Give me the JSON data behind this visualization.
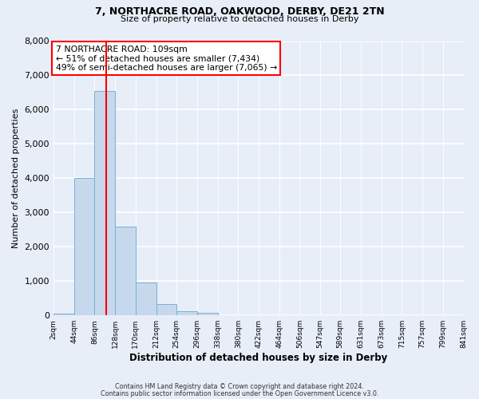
{
  "title1": "7, NORTHACRE ROAD, OAKWOOD, DERBY, DE21 2TN",
  "title2": "Size of property relative to detached houses in Derby",
  "xlabel": "Distribution of detached houses by size in Derby",
  "ylabel": "Number of detached properties",
  "bin_edges": [
    2,
    44,
    86,
    128,
    170,
    212,
    254,
    296,
    338,
    380,
    422,
    464,
    506,
    547,
    589,
    631,
    673,
    715,
    757,
    799,
    841
  ],
  "bar_heights": [
    50,
    4000,
    6550,
    2600,
    950,
    320,
    130,
    80,
    0,
    0,
    0,
    0,
    0,
    0,
    0,
    0,
    0,
    0,
    0,
    0
  ],
  "bar_color": "#c6d9ec",
  "bar_edge_color": "#7aafd4",
  "vline_x": 109,
  "vline_color": "red",
  "ylim": [
    0,
    8000
  ],
  "yticks": [
    0,
    1000,
    2000,
    3000,
    4000,
    5000,
    6000,
    7000,
    8000
  ],
  "annotation_title": "7 NORTHACRE ROAD: 109sqm",
  "annotation_line1": "← 51% of detached houses are smaller (7,434)",
  "annotation_line2": "49% of semi-detached houses are larger (7,065) →",
  "annotation_box_color": "#ffffff",
  "annotation_box_edge": "red",
  "footer1": "Contains HM Land Registry data © Crown copyright and database right 2024.",
  "footer2": "Contains public sector information licensed under the Open Government Licence v3.0.",
  "tick_labels": [
    "2sqm",
    "44sqm",
    "86sqm",
    "128sqm",
    "170sqm",
    "212sqm",
    "254sqm",
    "296sqm",
    "338sqm",
    "380sqm",
    "422sqm",
    "464sqm",
    "506sqm",
    "547sqm",
    "589sqm",
    "631sqm",
    "673sqm",
    "715sqm",
    "757sqm",
    "799sqm",
    "841sqm"
  ],
  "bg_color": "#e8eef8",
  "plot_bg_color": "#e8eef8",
  "grid_color": "#ffffff"
}
